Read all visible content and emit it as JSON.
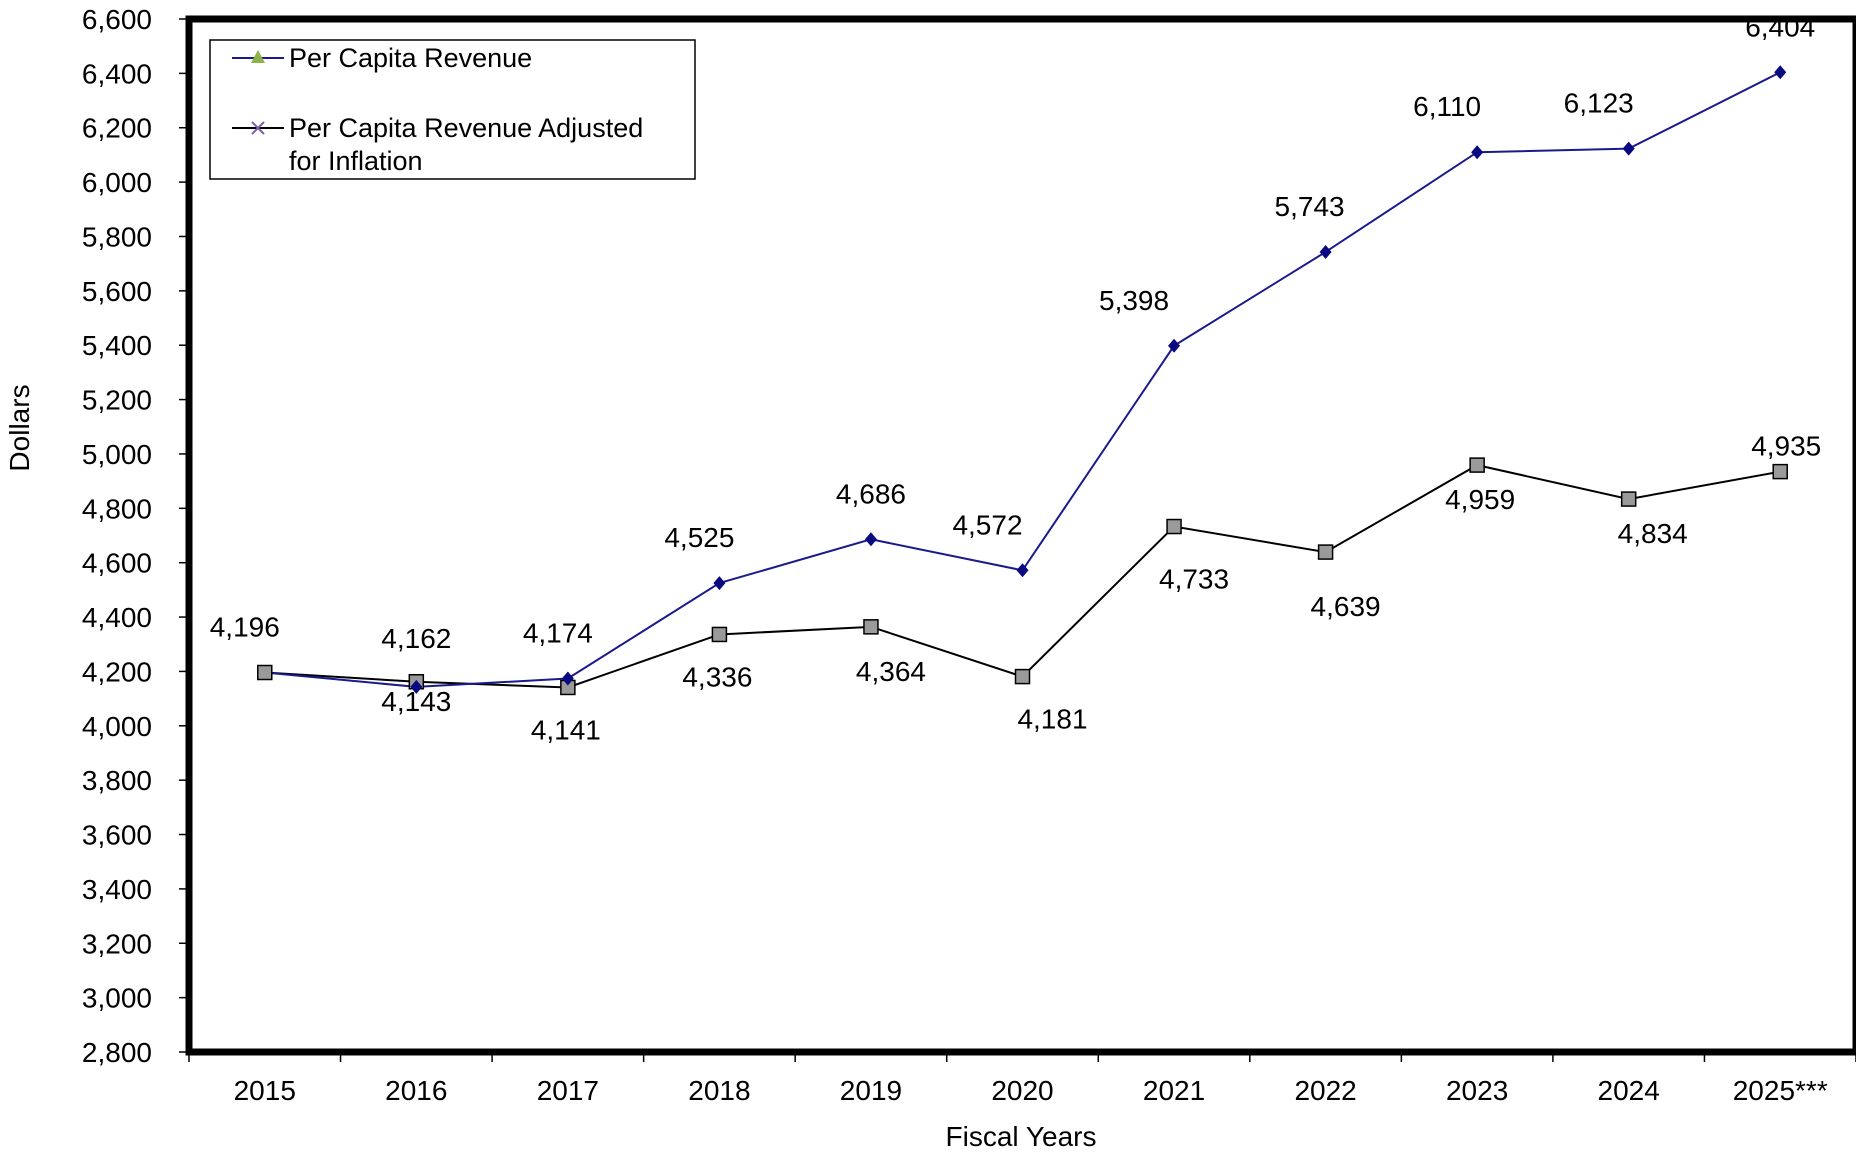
{
  "chart_data": {
    "type": "line",
    "title": "",
    "xlabel": "Fiscal Years",
    "ylabel": "Dollars",
    "categories": [
      "2015",
      "2016",
      "2017",
      "2018",
      "2019",
      "2020",
      "2021",
      "2022",
      "2023",
      "2024",
      "2025***"
    ],
    "ylim": [
      2800,
      6600
    ],
    "ytick_step": 200,
    "yticks": [
      "2,800",
      "3,000",
      "3,200",
      "3,400",
      "3,600",
      "3,800",
      "4,000",
      "4,200",
      "4,400",
      "4,600",
      "4,800",
      "5,000",
      "5,200",
      "5,400",
      "5,600",
      "5,800",
      "6,000",
      "6,200",
      "6,400",
      "6,600"
    ],
    "grid": false,
    "legend_position": "top-left",
    "series": [
      {
        "name": "Per Capita Revenue",
        "color": "#1a1a8c",
        "marker_color": "#0a0a80",
        "legend_marker_color": "#8db24a",
        "values": [
          4196,
          4143,
          4174,
          4525,
          4686,
          4572,
          5398,
          5743,
          6110,
          6123,
          6404
        ],
        "labels": [
          "4,196",
          "4,143",
          "4,174",
          "4,525",
          "4,686",
          "4,572",
          "5,398",
          "5,743",
          "6,110",
          "6,123",
          "6,404"
        ]
      },
      {
        "name": "Per Capita Revenue Adjusted for Inflation",
        "color": "#000000",
        "marker_color": "#9a9a9a",
        "legend_marker_color": "#7b5ea7",
        "values": [
          4196,
          4162,
          4141,
          4336,
          4364,
          4181,
          4733,
          4639,
          4959,
          4834,
          4935
        ],
        "labels": [
          "",
          "4,162",
          "4,141",
          "4,336",
          "4,364",
          "4,181",
          "4,733",
          "4,639",
          "4,959",
          "4,834",
          "4,935"
        ]
      }
    ],
    "legend": {
      "line1": "Per Capita Revenue",
      "line2a": "Per Capita Revenue Adjusted",
      "line2b": "for Inflation"
    }
  }
}
